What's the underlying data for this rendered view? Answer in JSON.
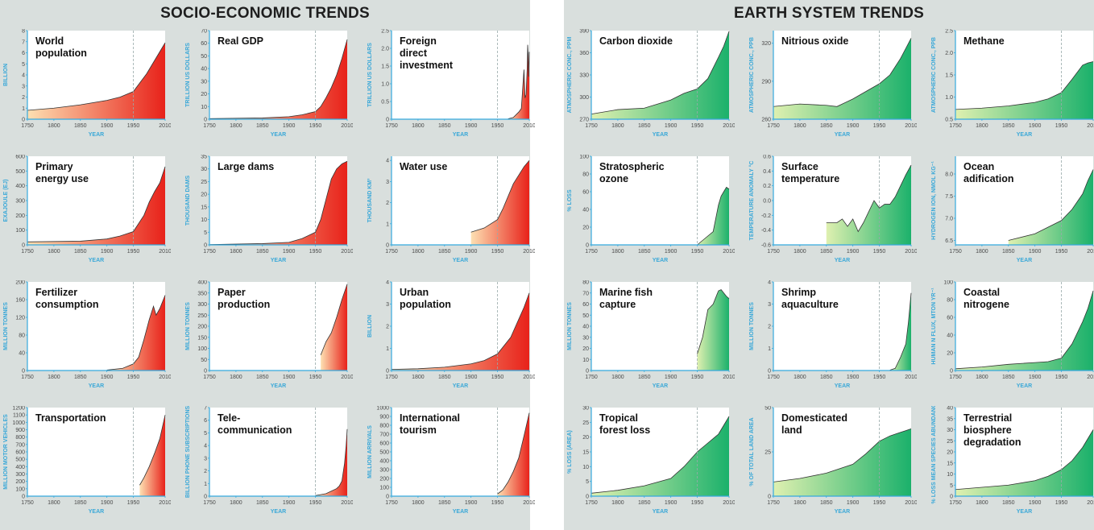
{
  "panels": [
    {
      "title": "SOCIO-ECONOMIC TRENDS",
      "theme": "red"
    },
    {
      "title": "EARTH SYSTEM TRENDS",
      "theme": "green"
    }
  ],
  "chart_data": [
    {
      "panel": 0,
      "row": 0,
      "col": 0,
      "type": "area",
      "title": [
        "World",
        "population"
      ],
      "ylabel": "BILLION",
      "xlabel": "YEAR",
      "ylim": [
        0,
        8
      ],
      "yticks": [
        0,
        1,
        2,
        3,
        4,
        5,
        6,
        7,
        8
      ],
      "xticks": [
        "1750",
        "1800",
        "1850",
        "1900",
        "1950",
        "2010"
      ],
      "x": [
        1750,
        1800,
        1850,
        1900,
        1925,
        1950,
        1975,
        2000,
        2010
      ],
      "values": [
        0.8,
        1.0,
        1.3,
        1.7,
        2.0,
        2.5,
        4.1,
        6.1,
        6.9
      ]
    },
    {
      "panel": 0,
      "row": 0,
      "col": 1,
      "type": "area",
      "title": [
        "Real GDP"
      ],
      "ylabel": "TRILLION US DOLLARS",
      "xlabel": "YEAR",
      "ylim": [
        0,
        70
      ],
      "yticks": [
        0,
        10,
        20,
        30,
        40,
        50,
        60,
        70
      ],
      "xticks": [
        "1750",
        "1800",
        "1850",
        "1900",
        "1950",
        "2010"
      ],
      "x": [
        1750,
        1850,
        1900,
        1925,
        1950,
        1960,
        1970,
        1980,
        1990,
        2000,
        2010
      ],
      "values": [
        0.5,
        1.0,
        2.0,
        3.5,
        6,
        10,
        17,
        25,
        35,
        48,
        63
      ]
    },
    {
      "panel": 0,
      "row": 0,
      "col": 2,
      "type": "area",
      "title": [
        "Foreign",
        "direct",
        "investment"
      ],
      "ylabel": "TRILLION US DOLLARS",
      "xlabel": "YEAR",
      "ylim": [
        0,
        2.5
      ],
      "yticks": [
        "0",
        "0.5",
        "1.0",
        "1.5",
        "2.0",
        "2.5"
      ],
      "xticks": [
        "1750",
        "1800",
        "1850",
        "1900",
        "1950",
        "2010"
      ],
      "x": [
        1970,
        1980,
        1990,
        1995,
        2000,
        2002,
        2004,
        2006,
        2007,
        2008,
        2009,
        2010
      ],
      "values": [
        0.01,
        0.05,
        0.2,
        0.3,
        1.4,
        0.6,
        0.7,
        1.4,
        2.1,
        1.8,
        1.2,
        1.9
      ]
    },
    {
      "panel": 0,
      "row": 1,
      "col": 0,
      "type": "area",
      "title": [
        "Primary",
        "energy use"
      ],
      "ylabel": "EXAJOULE (EJ)",
      "xlabel": "YEAR",
      "ylim": [
        0,
        600
      ],
      "yticks": [
        0,
        100,
        200,
        300,
        400,
        500,
        600
      ],
      "xticks": [
        "1750",
        "1800",
        "1850",
        "1900",
        "1950",
        "2010"
      ],
      "x": [
        1750,
        1850,
        1900,
        1925,
        1950,
        1970,
        1980,
        1990,
        2000,
        2010
      ],
      "values": [
        20,
        25,
        40,
        60,
        90,
        200,
        290,
        360,
        420,
        530
      ]
    },
    {
      "panel": 0,
      "row": 1,
      "col": 1,
      "type": "area",
      "title": [
        "Large dams"
      ],
      "ylabel": "THOUSAND DAMS",
      "xlabel": "YEAR",
      "ylim": [
        0,
        35
      ],
      "yticks": [
        0,
        5,
        10,
        15,
        20,
        25,
        30,
        35
      ],
      "xticks": [
        "1750",
        "1800",
        "1850",
        "1900",
        "1950",
        "2010"
      ],
      "x": [
        1750,
        1850,
        1900,
        1925,
        1950,
        1960,
        1970,
        1980,
        1990,
        2000,
        2010
      ],
      "values": [
        0.1,
        0.5,
        1,
        2.5,
        5,
        10,
        18,
        26,
        30,
        32,
        33
      ]
    },
    {
      "panel": 0,
      "row": 1,
      "col": 2,
      "type": "area",
      "title": [
        "Water use"
      ],
      "ylabel": "THOUSAND KM³",
      "xlabel": "YEAR",
      "ylim": [
        0,
        4.2
      ],
      "yticks": [
        0,
        1,
        2,
        3,
        4
      ],
      "xticks": [
        "1750",
        "1800",
        "1850",
        "1900",
        "1950",
        "2010"
      ],
      "x": [
        1900,
        1925,
        1950,
        1960,
        1970,
        1980,
        1990,
        2000,
        2010
      ],
      "values": [
        0.6,
        0.8,
        1.2,
        1.7,
        2.3,
        2.9,
        3.3,
        3.7,
        4.0
      ]
    },
    {
      "panel": 0,
      "row": 2,
      "col": 0,
      "type": "area",
      "title": [
        "Fertilizer",
        "consumption"
      ],
      "ylabel": "MILLION TONNES",
      "xlabel": "YEAR",
      "ylim": [
        0,
        200
      ],
      "yticks": [
        0,
        40,
        80,
        120,
        160,
        200
      ],
      "xticks": [
        "1750",
        "1800",
        "1850",
        "1900",
        "1950",
        "2010"
      ],
      "x": [
        1900,
        1930,
        1950,
        1960,
        1970,
        1980,
        1988,
        1993,
        2000,
        2010
      ],
      "values": [
        1,
        5,
        15,
        30,
        70,
        115,
        145,
        125,
        140,
        170
      ]
    },
    {
      "panel": 0,
      "row": 2,
      "col": 1,
      "type": "area",
      "title": [
        "Paper",
        "production"
      ],
      "ylabel": "MILLION TONNES",
      "xlabel": "YEAR",
      "ylim": [
        0,
        400
      ],
      "yticks": [
        0,
        50,
        100,
        150,
        200,
        250,
        300,
        350,
        400
      ],
      "xticks": [
        "1750",
        "1800",
        "1850",
        "1900",
        "1950",
        "2010"
      ],
      "x": [
        1960,
        1970,
        1980,
        1990,
        2000,
        2010
      ],
      "values": [
        70,
        130,
        170,
        240,
        320,
        390
      ]
    },
    {
      "panel": 0,
      "row": 2,
      "col": 2,
      "type": "area",
      "title": [
        "Urban",
        "population"
      ],
      "ylabel": "BILLION",
      "xlabel": "YEAR",
      "ylim": [
        0,
        4
      ],
      "yticks": [
        0,
        1,
        2,
        3,
        4
      ],
      "xticks": [
        "1750",
        "1800",
        "1850",
        "1900",
        "1950",
        "2010"
      ],
      "x": [
        1750,
        1800,
        1850,
        1900,
        1925,
        1950,
        1975,
        2000,
        2010
      ],
      "values": [
        0.05,
        0.08,
        0.15,
        0.3,
        0.45,
        0.75,
        1.5,
        2.85,
        3.5
      ]
    },
    {
      "panel": 0,
      "row": 3,
      "col": 0,
      "type": "area",
      "title": [
        "Transportation"
      ],
      "ylabel": "MILLION MOTOR VEHICLES",
      "xlabel": "YEAR",
      "ylim": [
        0,
        1200
      ],
      "yticks": [
        0,
        100,
        200,
        300,
        400,
        500,
        600,
        700,
        800,
        900,
        1000,
        1100,
        1200
      ],
      "xticks": [
        "1750",
        "1800",
        "1850",
        "1900",
        "1950",
        "2010"
      ],
      "x": [
        1962,
        1970,
        1980,
        1990,
        2000,
        2010
      ],
      "values": [
        150,
        250,
        400,
        580,
        780,
        1100
      ]
    },
    {
      "panel": 0,
      "row": 3,
      "col": 1,
      "type": "area",
      "title": [
        "Tele-",
        "communication"
      ],
      "ylabel": "BILLION PHONE SUBSCRIPTIONS",
      "xlabel": "YEAR",
      "ylim": [
        0,
        7
      ],
      "yticks": [
        0,
        1,
        2,
        3,
        4,
        5,
        6,
        7
      ],
      "xticks": [
        "1750",
        "1800",
        "1850",
        "1900",
        "1950",
        "2010"
      ],
      "x": [
        1950,
        1970,
        1980,
        1990,
        1995,
        2000,
        2005,
        2008,
        2010
      ],
      "values": [
        0.05,
        0.2,
        0.4,
        0.6,
        0.8,
        1.2,
        2.6,
        4.0,
        5.3
      ]
    },
    {
      "panel": 0,
      "row": 3,
      "col": 2,
      "type": "area",
      "title": [
        "International",
        "tourism"
      ],
      "ylabel": "MILLION ARRIVALS",
      "xlabel": "YEAR",
      "ylim": [
        0,
        1000
      ],
      "yticks": [
        0,
        100,
        200,
        300,
        400,
        500,
        600,
        700,
        800,
        900,
        1000
      ],
      "xticks": [
        "1750",
        "1800",
        "1850",
        "1900",
        "1950",
        "2010"
      ],
      "x": [
        1950,
        1960,
        1970,
        1980,
        1990,
        2000,
        2010
      ],
      "values": [
        25,
        70,
        160,
        280,
        430,
        680,
        940
      ]
    },
    {
      "panel": 1,
      "row": 0,
      "col": 0,
      "type": "area",
      "title": [
        "Carbon dioxide"
      ],
      "ylabel": "ATMOSPHERIC CONC., PPM",
      "xlabel": "YEAR",
      "ylim": [
        270,
        390
      ],
      "yticks": [
        270,
        300,
        330,
        360,
        390
      ],
      "xticks": [
        "1750",
        "1800",
        "1850",
        "1900",
        "1950",
        "2010"
      ],
      "x": [
        1750,
        1800,
        1850,
        1900,
        1925,
        1950,
        1970,
        1990,
        2000,
        2010
      ],
      "values": [
        277,
        283,
        285,
        296,
        305,
        311,
        325,
        354,
        369,
        389
      ]
    },
    {
      "panel": 1,
      "row": 0,
      "col": 1,
      "type": "area",
      "title": [
        "Nitrious oxide"
      ],
      "ylabel": "ATMOSPHERIC CONC., PPB",
      "xlabel": "YEAR",
      "ylim": [
        260,
        330
      ],
      "yticks": [
        260,
        290,
        320
      ],
      "xticks": [
        "1750",
        "1800",
        "1850",
        "1900",
        "1950",
        "2010"
      ],
      "x": [
        1750,
        1800,
        1850,
        1870,
        1900,
        1950,
        1970,
        1990,
        2000,
        2010
      ],
      "values": [
        270,
        272,
        271,
        270,
        276,
        288,
        295,
        308,
        316,
        324
      ]
    },
    {
      "panel": 1,
      "row": 0,
      "col": 2,
      "type": "area",
      "title": [
        "Methane"
      ],
      "ylabel": "ATMOSPHERIC CONC., PPB",
      "xlabel": "YEAR",
      "ylim": [
        0.5,
        2.5
      ],
      "yticks": [
        "0.5",
        "1.0",
        "1.5",
        "2.0",
        "2.5"
      ],
      "xticks": [
        "1750",
        "1800",
        "1850",
        "1900",
        "1950",
        "2010"
      ],
      "x": [
        1750,
        1800,
        1850,
        1900,
        1925,
        1950,
        1970,
        1990,
        2000,
        2010
      ],
      "values": [
        0.72,
        0.75,
        0.8,
        0.88,
        0.96,
        1.1,
        1.4,
        1.72,
        1.77,
        1.8
      ]
    },
    {
      "panel": 1,
      "row": 1,
      "col": 0,
      "type": "area",
      "title": [
        "Stratospheric",
        "ozone"
      ],
      "ylabel": "% LOSS",
      "xlabel": "YEAR",
      "ylim": [
        0,
        100
      ],
      "yticks": [
        0,
        20,
        40,
        60,
        80,
        100
      ],
      "xticks": [
        "1750",
        "1800",
        "1850",
        "1900",
        "1950",
        "2010"
      ],
      "x": [
        1950,
        1960,
        1970,
        1980,
        1985,
        1990,
        1995,
        2000,
        2005,
        2010
      ],
      "values": [
        0,
        5,
        10,
        15,
        30,
        45,
        55,
        60,
        65,
        63
      ]
    },
    {
      "panel": 1,
      "row": 1,
      "col": 1,
      "type": "area",
      "title": [
        "Surface",
        "temperature"
      ],
      "ylabel": "TEMPERATURE ANOMALY °C",
      "xlabel": "YEAR",
      "ylim": [
        -0.6,
        0.6
      ],
      "yticks": [
        "-0.6",
        "-0.4",
        "-0.2",
        "0.0",
        "0.2",
        "0.4",
        "0.6"
      ],
      "xticks": [
        "1750",
        "1800",
        "1850",
        "1900",
        "1950",
        "2010"
      ],
      "x": [
        1850,
        1870,
        1880,
        1890,
        1900,
        1910,
        1920,
        1940,
        1950,
        1960,
        1970,
        1980,
        1990,
        2000,
        2010
      ],
      "values": [
        -0.3,
        -0.3,
        -0.25,
        -0.35,
        -0.25,
        -0.42,
        -0.3,
        0.0,
        -0.1,
        -0.05,
        -0.05,
        0.05,
        0.2,
        0.35,
        0.48
      ]
    },
    {
      "panel": 1,
      "row": 1,
      "col": 2,
      "type": "area",
      "title": [
        "Ocean",
        "adification"
      ],
      "ylabel": "HYDROGEN ION, NMOL KG⁻¹",
      "xlabel": "YEAR",
      "ylim": [
        6.4,
        8.4
      ],
      "yticks": [
        "6.5",
        "7.0",
        "7.5",
        "8.0"
      ],
      "xticks": [
        "1750",
        "1800",
        "1850",
        "1900",
        "1950",
        "2010"
      ],
      "x": [
        1850,
        1900,
        1925,
        1950,
        1970,
        1990,
        2000,
        2010
      ],
      "values": [
        6.5,
        6.65,
        6.8,
        6.95,
        7.2,
        7.55,
        7.85,
        8.1
      ]
    },
    {
      "panel": 1,
      "row": 2,
      "col": 0,
      "type": "area",
      "title": [
        "Marine fish",
        "capture"
      ],
      "ylabel": "MILLION TONNES",
      "xlabel": "YEAR",
      "ylim": [
        0,
        80
      ],
      "yticks": [
        0,
        10,
        20,
        30,
        40,
        50,
        60,
        70,
        80
      ],
      "xticks": [
        "1750",
        "1800",
        "1850",
        "1900",
        "1950",
        "2010"
      ],
      "x": [
        1950,
        1960,
        1970,
        1980,
        1990,
        1995,
        2000,
        2005,
        2010
      ],
      "values": [
        15,
        30,
        55,
        60,
        72,
        73,
        70,
        67,
        65
      ]
    },
    {
      "panel": 1,
      "row": 2,
      "col": 1,
      "type": "area",
      "title": [
        "Shrimp",
        "aquaculture"
      ],
      "ylabel": "MILLION TONNES",
      "xlabel": "YEAR",
      "ylim": [
        0,
        4
      ],
      "yticks": [
        0,
        1,
        2,
        3,
        4
      ],
      "xticks": [
        "1750",
        "1800",
        "1850",
        "1900",
        "1950",
        "2010"
      ],
      "x": [
        1970,
        1980,
        1990,
        2000,
        2005,
        2010
      ],
      "values": [
        0.02,
        0.1,
        0.6,
        1.2,
        2.2,
        3.5
      ]
    },
    {
      "panel": 1,
      "row": 2,
      "col": 2,
      "type": "area",
      "title": [
        "Coastal",
        "nitrogene"
      ],
      "ylabel": "HUMAN N FLUX, MTON YR⁻¹",
      "xlabel": "YEAR",
      "ylim": [
        0,
        100
      ],
      "yticks": [
        0,
        20,
        40,
        60,
        80,
        100
      ],
      "xticks": [
        "1750",
        "1800",
        "1850",
        "1900",
        "1950",
        "2010"
      ],
      "x": [
        1750,
        1800,
        1850,
        1900,
        1925,
        1950,
        1970,
        1990,
        2000,
        2010
      ],
      "values": [
        2,
        4,
        7,
        9,
        10,
        14,
        30,
        55,
        70,
        90
      ]
    },
    {
      "panel": 1,
      "row": 3,
      "col": 0,
      "type": "area",
      "title": [
        "Tropical",
        "forest loss"
      ],
      "ylabel": "% LOSS (AREA)",
      "xlabel": "YEAR",
      "ylim": [
        0,
        30
      ],
      "yticks": [
        0,
        5,
        10,
        15,
        20,
        25,
        30
      ],
      "xticks": [
        "1750",
        "1800",
        "1850",
        "1900",
        "1950",
        "2010"
      ],
      "x": [
        1750,
        1800,
        1850,
        1900,
        1925,
        1950,
        1970,
        1990,
        2000,
        2010
      ],
      "values": [
        1,
        2,
        3.5,
        6,
        10,
        15,
        18,
        21,
        24,
        27
      ]
    },
    {
      "panel": 1,
      "row": 3,
      "col": 1,
      "type": "area",
      "title": [
        "Domesticated",
        "land"
      ],
      "ylabel": "% OF TOTAL LAND AREA",
      "xlabel": "YEAR",
      "ylim": [
        0,
        50
      ],
      "yticks": [
        0,
        25,
        50
      ],
      "xticks": [
        "1750",
        "1800",
        "1850",
        "1900",
        "1950",
        "2010"
      ],
      "x": [
        1750,
        1800,
        1850,
        1900,
        1925,
        1950,
        1970,
        1990,
        2000,
        2010
      ],
      "values": [
        8,
        10,
        13,
        18,
        24,
        31,
        34,
        36,
        37,
        38
      ]
    },
    {
      "panel": 1,
      "row": 3,
      "col": 2,
      "type": "area",
      "title": [
        "Terrestrial",
        "biosphere",
        "degradation"
      ],
      "ylabel": "% LOSS MEAN SPECIES ABUNDANCE",
      "xlabel": "YEAR",
      "ylim": [
        0,
        40
      ],
      "yticks": [
        0,
        5,
        10,
        15,
        20,
        25,
        30,
        35,
        40
      ],
      "xticks": [
        "1750",
        "1800",
        "1850",
        "1900",
        "1950",
        "2010"
      ],
      "x": [
        1750,
        1800,
        1850,
        1900,
        1925,
        1950,
        1970,
        1990,
        2000,
        2010
      ],
      "values": [
        3,
        4,
        5,
        7,
        9,
        12,
        16,
        22,
        26,
        30
      ]
    }
  ],
  "highlight_year": 1950,
  "colors": {
    "red_dark": "#e8221a",
    "red_light": "#fde0b2",
    "green_dark": "#1bb16b",
    "green_light": "#dff0b0",
    "axis": "#35a9dd",
    "highlight": "#e6106e"
  }
}
